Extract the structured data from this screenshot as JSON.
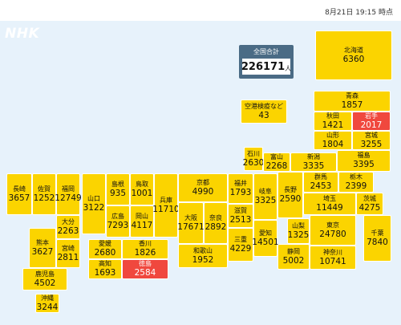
{
  "timestamp": "8月21日 19:15 時点",
  "logo": "NHK",
  "total": {
    "label": "全国合計",
    "value": "226171",
    "unit": "人"
  },
  "prefectures": {
    "hokkaido": {
      "name": "北海道",
      "value": "6360"
    },
    "airport": {
      "name": "空港検疫など",
      "value": "43"
    },
    "aomori": {
      "name": "青森",
      "value": "1857"
    },
    "akita": {
      "name": "秋田",
      "value": "1421"
    },
    "iwate": {
      "name": "岩手",
      "value": "2017"
    },
    "yamagata": {
      "name": "山形",
      "value": "1804"
    },
    "miyagi": {
      "name": "宮城",
      "value": "3255"
    },
    "ishikawa": {
      "name": "石川",
      "value": "2630"
    },
    "toyama": {
      "name": "富山",
      "value": "2268"
    },
    "niigata": {
      "name": "新潟",
      "value": "3335"
    },
    "fukushima": {
      "name": "福島",
      "value": "3395"
    },
    "gunma": {
      "name": "群馬",
      "value": "2453"
    },
    "tochigi": {
      "name": "栃木",
      "value": "2399"
    },
    "nagasaki": {
      "name": "長崎",
      "value": "3657"
    },
    "saga": {
      "name": "佐賀",
      "value": "1252"
    },
    "fukuoka": {
      "name": "福岡",
      "value": "12749"
    },
    "yamaguchi": {
      "name": "山口",
      "value": "3122"
    },
    "shimane": {
      "name": "島根",
      "value": "935"
    },
    "tottori": {
      "name": "鳥取",
      "value": "1001"
    },
    "kyoto": {
      "name": "京都",
      "value": "4990"
    },
    "fukui": {
      "name": "福井",
      "value": "1793"
    },
    "gifu": {
      "name": "岐阜",
      "value": "3325"
    },
    "nagano": {
      "name": "長野",
      "value": "2590"
    },
    "saitama": {
      "name": "埼玉",
      "value": "11449"
    },
    "ibaraki": {
      "name": "茨城",
      "value": "4275"
    },
    "hiroshima": {
      "name": "広島",
      "value": "7293"
    },
    "okayama": {
      "name": "岡山",
      "value": "4117"
    },
    "hyogo": {
      "name": "兵庫",
      "value": "11710"
    },
    "shiga": {
      "name": "滋賀",
      "value": "2513"
    },
    "osaka": {
      "name": "大阪",
      "value": "17671"
    },
    "nara": {
      "name": "奈良",
      "value": "2892"
    },
    "mie": {
      "name": "三重",
      "value": "4229"
    },
    "aichi": {
      "name": "愛知",
      "value": "14501"
    },
    "yamanashi": {
      "name": "山梨",
      "value": "1325"
    },
    "tokyo": {
      "name": "東京",
      "value": "24780"
    },
    "chiba": {
      "name": "千葉",
      "value": "7840"
    },
    "oita": {
      "name": "大分",
      "value": "2263"
    },
    "kumamoto": {
      "name": "熊本",
      "value": "3627"
    },
    "miyazaki": {
      "name": "宮崎",
      "value": "2811"
    },
    "ehime": {
      "name": "愛媛",
      "value": "2680"
    },
    "kagawa": {
      "name": "香川",
      "value": "1826"
    },
    "kochi": {
      "name": "高知",
      "value": "1693"
    },
    "tokushima": {
      "name": "徳島",
      "value": "2584"
    },
    "wakayama": {
      "name": "和歌山",
      "value": "1952"
    },
    "shizuoka": {
      "name": "静岡",
      "value": "5002"
    },
    "kanagawa": {
      "name": "神奈川",
      "value": "10741"
    },
    "kagoshima": {
      "name": "鹿児島",
      "value": "4502"
    },
    "okinawa": {
      "name": "沖縄",
      "value": "3244"
    }
  },
  "colors": {
    "default": "#fbd400",
    "highlight": "#f0483e",
    "background": "#e7f2fb",
    "total_panel": "#4a6b85"
  }
}
